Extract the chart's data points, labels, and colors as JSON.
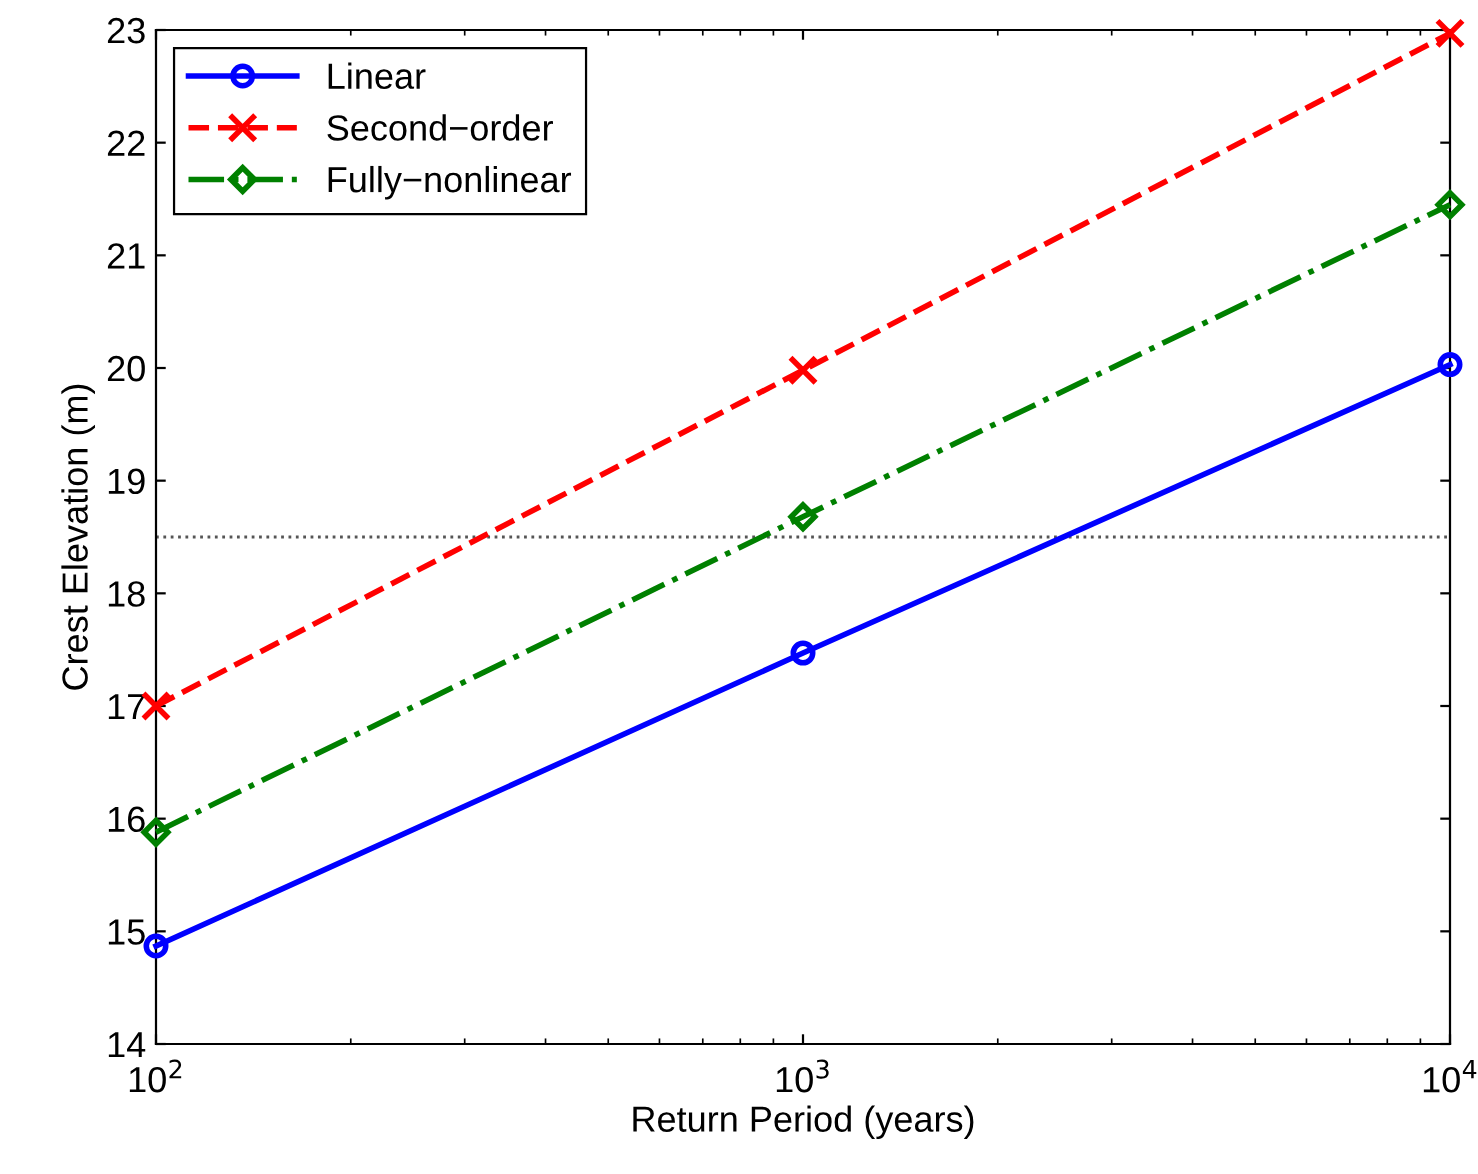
{
  "chart_data": {
    "type": "line",
    "xlabel": "Return Period (years)",
    "ylabel": "Crest Elevation (m)",
    "x": [
      100,
      1000,
      10000
    ],
    "series": [
      {
        "name": "Linear",
        "color": "#0000ff",
        "values": [
          14.87,
          17.47,
          20.03
        ],
        "marker": "circle",
        "line_style": "solid"
      },
      {
        "name": "Second−order",
        "color": "#ff0000",
        "values": [
          17.0,
          19.98,
          22.97
        ],
        "marker": "cross",
        "line_style": "dashed"
      },
      {
        "name": "Fully−nonlinear",
        "color": "#008000",
        "values": [
          15.88,
          18.68,
          21.45
        ],
        "marker": "diamond",
        "line_style": "dashdot"
      }
    ],
    "log": "x",
    "xlim": [
      100,
      10000
    ],
    "xticks": [
      {
        "value": 100,
        "label": "10$^{2}$"
      },
      {
        "value": 1000,
        "label": "10$^{3}$"
      },
      {
        "value": 10000,
        "label": "10$^{4}$"
      }
    ],
    "ylim": [
      14,
      23
    ],
    "yticks": [
      14,
      15,
      16,
      17,
      18,
      19,
      20,
      21,
      22,
      23
    ],
    "ref_lines": [
      {
        "axis": "y",
        "value": 18.5,
        "color": "#555555",
        "line_style": "dotted"
      }
    ],
    "grid": false,
    "legend": "top left"
  }
}
